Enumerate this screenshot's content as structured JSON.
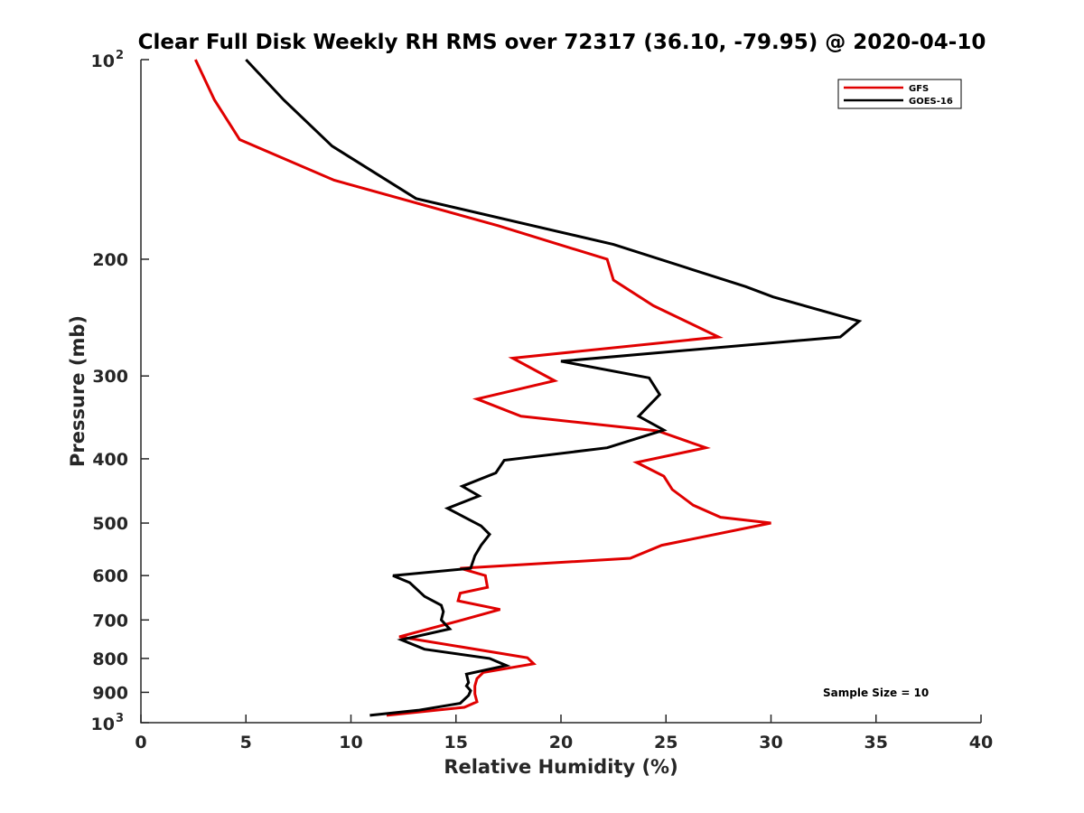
{
  "chart_data": {
    "type": "line",
    "title": "Clear Full Disk Weekly RH RMS over 72317 (36.10, -79.95) @ 2020-04-10",
    "xlabel": "Relative Humidity (%)",
    "ylabel": "Pressure (mb)",
    "xlim": [
      0,
      40
    ],
    "ylim": [
      100,
      1000
    ],
    "y_scale": "log",
    "y_reversed": true,
    "grid": false,
    "legend_position": "top-right",
    "x_ticks": [
      "0",
      "5",
      "10",
      "15",
      "20",
      "25",
      "30",
      "35",
      "40"
    ],
    "y_ticks": [
      {
        "value": 100,
        "label": "10",
        "sup": "2"
      },
      {
        "value": 200,
        "label": "200",
        "sup": ""
      },
      {
        "value": 300,
        "label": "300",
        "sup": ""
      },
      {
        "value": 400,
        "label": "400",
        "sup": ""
      },
      {
        "value": 500,
        "label": "500",
        "sup": ""
      },
      {
        "value": 600,
        "label": "600",
        "sup": ""
      },
      {
        "value": 700,
        "label": "700",
        "sup": ""
      },
      {
        "value": 800,
        "label": "800",
        "sup": ""
      },
      {
        "value": 900,
        "label": "900",
        "sup": ""
      },
      {
        "value": 1000,
        "label": "10",
        "sup": "3"
      }
    ],
    "annotation": "Sample Size = 10",
    "series": [
      {
        "name": "GFS",
        "color": "#e00000",
        "points": [
          [
            2.6,
            100
          ],
          [
            3.5,
            115
          ],
          [
            4.7,
            132
          ],
          [
            9.2,
            152
          ],
          [
            17.0,
            178
          ],
          [
            22.2,
            200
          ],
          [
            22.5,
            215
          ],
          [
            24.4,
            235
          ],
          [
            27.5,
            262
          ],
          [
            17.7,
            282
          ],
          [
            19.7,
            305
          ],
          [
            16.0,
            325
          ],
          [
            18.1,
            345
          ],
          [
            24.6,
            363
          ],
          [
            26.9,
            385
          ],
          [
            23.6,
            405
          ],
          [
            24.9,
            425
          ],
          [
            25.3,
            445
          ],
          [
            26.3,
            470
          ],
          [
            27.6,
            490
          ],
          [
            30.0,
            500
          ],
          [
            24.8,
            540
          ],
          [
            23.3,
            565
          ],
          [
            15.2,
            585
          ],
          [
            16.4,
            600
          ],
          [
            16.5,
            625
          ],
          [
            15.2,
            638
          ],
          [
            15.1,
            655
          ],
          [
            17.1,
            675
          ],
          [
            15.3,
            700
          ],
          [
            12.3,
            742
          ],
          [
            18.4,
            798
          ],
          [
            18.7,
            815
          ],
          [
            16.3,
            840
          ],
          [
            16.0,
            858
          ],
          [
            15.9,
            880
          ],
          [
            15.9,
            905
          ],
          [
            16.0,
            930
          ],
          [
            15.4,
            948
          ],
          [
            11.7,
            975
          ]
        ]
      },
      {
        "name": "GOES-16",
        "color": "#000000",
        "points": [
          [
            5.0,
            100
          ],
          [
            6.8,
            115
          ],
          [
            9.1,
            135
          ],
          [
            13.1,
            162
          ],
          [
            22.5,
            190
          ],
          [
            28.8,
            220
          ],
          [
            30.1,
            228
          ],
          [
            34.2,
            248
          ],
          [
            33.3,
            262
          ],
          [
            20.0,
            285
          ],
          [
            24.2,
            302
          ],
          [
            24.7,
            320
          ],
          [
            23.7,
            345
          ],
          [
            24.9,
            362
          ],
          [
            22.2,
            385
          ],
          [
            17.3,
            402
          ],
          [
            16.9,
            420
          ],
          [
            15.3,
            440
          ],
          [
            16.1,
            455
          ],
          [
            14.6,
            475
          ],
          [
            16.2,
            505
          ],
          [
            16.6,
            520
          ],
          [
            16.2,
            540
          ],
          [
            15.9,
            560
          ],
          [
            15.7,
            585
          ],
          [
            12.0,
            600
          ],
          [
            12.8,
            615
          ],
          [
            13.5,
            645
          ],
          [
            14.3,
            665
          ],
          [
            14.4,
            680
          ],
          [
            14.3,
            700
          ],
          [
            14.7,
            722
          ],
          [
            12.4,
            750
          ],
          [
            13.5,
            775
          ],
          [
            16.6,
            800
          ],
          [
            17.4,
            820
          ],
          [
            15.5,
            845
          ],
          [
            15.6,
            870
          ],
          [
            15.5,
            880
          ],
          [
            15.7,
            895
          ],
          [
            15.6,
            910
          ],
          [
            15.2,
            935
          ],
          [
            13.2,
            958
          ],
          [
            10.9,
            975
          ]
        ]
      }
    ]
  }
}
